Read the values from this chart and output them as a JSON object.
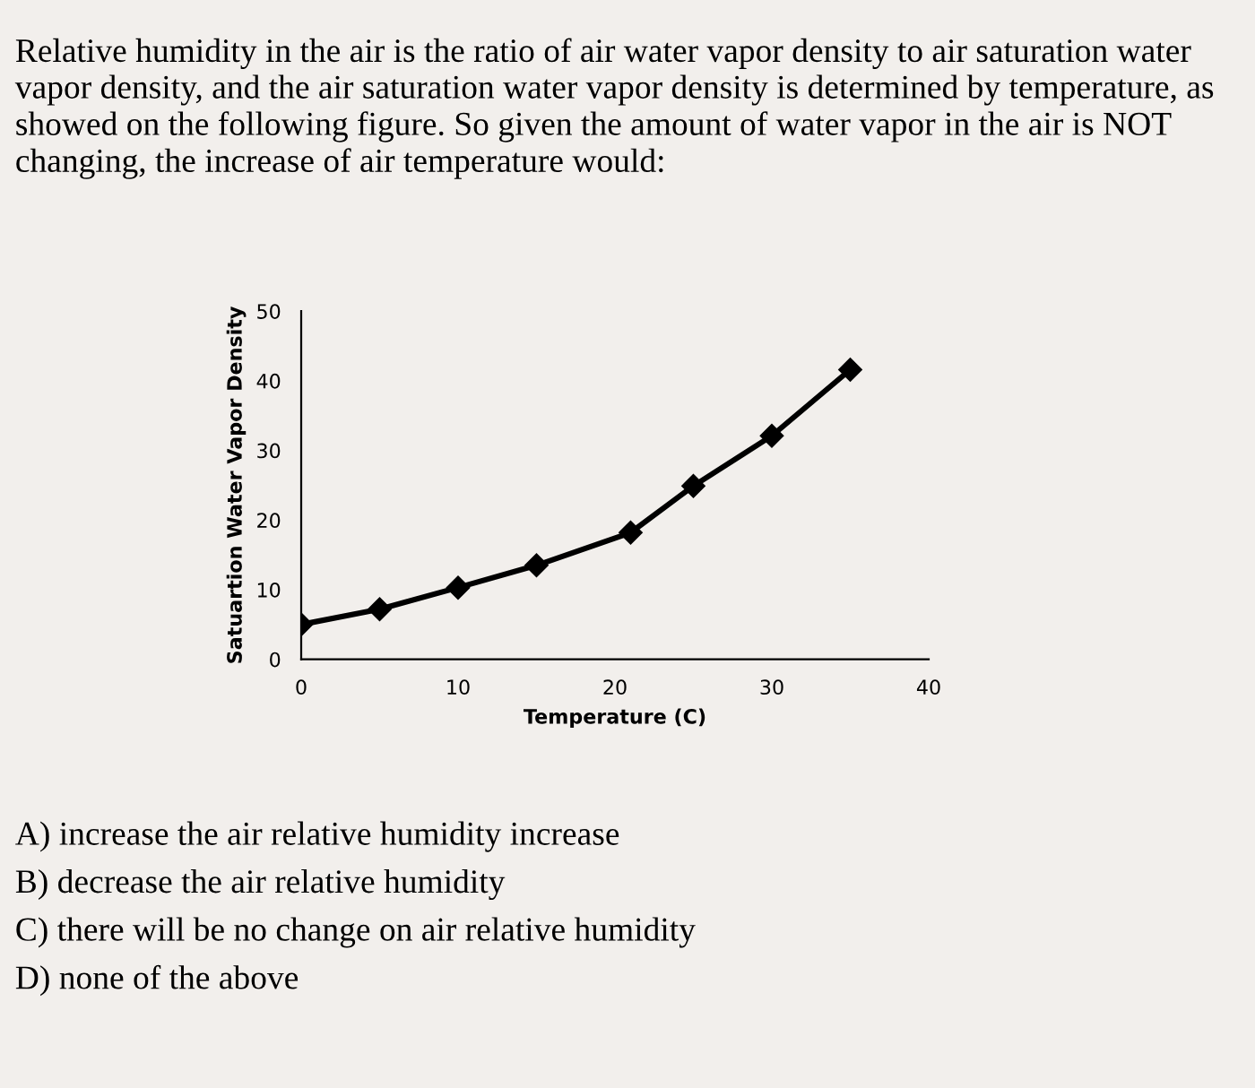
{
  "chart_data": {
    "type": "line",
    "title": "Relative humidity in the air is the ratio of air water vapor density to air saturation water vapor density, and the air saturation water vapor density is determined by temperature, as showed on the following figure. So given the amount of water vapor in the air is NOT changing, the increase of air temperature would:",
    "xlabel": "Temperature (C)",
    "ylabel": "Satuartion Water Vapor Density",
    "x": [
      0,
      5,
      10,
      15,
      21,
      25,
      30,
      35
    ],
    "series": [
      {
        "color": "#000000",
        "values": [
          5.0,
          7.2,
          10.3,
          13.5,
          18.2,
          24.9,
          32.1,
          41.6
        ]
      }
    ],
    "xlim": [
      0,
      40
    ],
    "xticks": [
      0,
      10,
      20,
      30,
      40
    ],
    "ylim": [
      0,
      50
    ],
    "yticks": [
      0,
      10,
      20,
      30,
      40,
      50
    ],
    "marker": "diamond",
    "line_style": "solid",
    "grid": false,
    "legend": false,
    "annotations": [
      "A) increase the air relative humidity increase",
      "B) decrease the air relative humidity",
      "C) there will be no change on air relative humidity",
      "D) none of the above"
    ]
  }
}
